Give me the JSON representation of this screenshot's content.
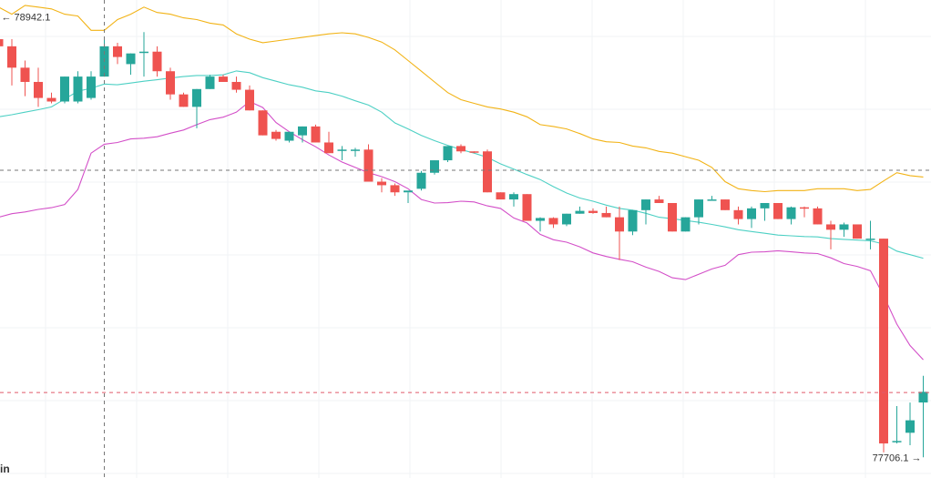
{
  "chart_data": {
    "type": "candlestick",
    "colors": {
      "up": "#26a69a",
      "down": "#ef5350",
      "bb_upper": "#f2b316",
      "bb_middle": "#4dd0c4",
      "bb_lower": "#d34fc8",
      "grid": "#f0f3f6",
      "crosshair": "#777777",
      "last_price_line": "#e05a6a",
      "background": "#ffffff"
    },
    "ylim": [
      77648,
      78990
    ],
    "high_marker": {
      "text": "← 78942.1",
      "value": 78942.1,
      "index": 0
    },
    "low_marker": {
      "text": "77706.1 →",
      "value": 77706.1,
      "index": 70
    },
    "crosshair": {
      "index": 8,
      "value": 78512
    },
    "last_price_line": 77888,
    "corner_text": "in",
    "candles": [
      [
        78880,
        78942.1,
        78650,
        78860
      ],
      [
        78860,
        78880,
        78750,
        78800
      ],
      [
        78800,
        78820,
        78720,
        78760
      ],
      [
        78760,
        78800,
        78690,
        78715
      ],
      [
        78715,
        78730,
        78700,
        78705
      ],
      [
        78705,
        78775,
        78700,
        78775
      ],
      [
        78705,
        78790,
        78700,
        78775
      ],
      [
        78715,
        78790,
        78710,
        78775
      ],
      [
        78775,
        78880,
        78775,
        78860
      ],
      [
        78860,
        78870,
        78810,
        78830
      ],
      [
        78810,
        78840,
        78780,
        78840
      ],
      [
        78845,
        78900,
        78775,
        78845
      ],
      [
        78845,
        78860,
        78775,
        78790
      ],
      [
        78790,
        78800,
        78710,
        78725
      ],
      [
        78725,
        78730,
        78690,
        78690
      ],
      [
        78690,
        78740,
        78630,
        78740
      ],
      [
        78740,
        78780,
        78740,
        78775
      ],
      [
        78775,
        78780,
        78760,
        78760
      ],
      [
        78760,
        78775,
        78730,
        78738
      ],
      [
        78738,
        78750,
        78680,
        78680
      ],
      [
        78680,
        78680,
        78610,
        78610
      ],
      [
        78620,
        78625,
        78595,
        78600
      ],
      [
        78595,
        78620,
        78590,
        78620
      ],
      [
        78610,
        78635,
        78590,
        78635
      ],
      [
        78635,
        78640,
        78590,
        78590
      ],
      [
        78590,
        78620,
        78560,
        78560
      ],
      [
        78570,
        78580,
        78540,
        78570
      ],
      [
        78570,
        78575,
        78550,
        78570
      ],
      [
        78570,
        78585,
        78480,
        78480
      ],
      [
        78480,
        78490,
        78450,
        78470
      ],
      [
        78470,
        78475,
        78440,
        78450
      ],
      [
        78450,
        78450,
        78420,
        78455
      ],
      [
        78460,
        78510,
        78455,
        78505
      ],
      [
        78505,
        78540,
        78500,
        78540
      ],
      [
        78540,
        78580,
        78535,
        78580
      ],
      [
        78580,
        78585,
        78560,
        78565
      ],
      [
        78565,
        78565,
        78560,
        78562
      ],
      [
        78565,
        78570,
        78450,
        78450
      ],
      [
        78450,
        78450,
        78440,
        78430
      ],
      [
        78430,
        78450,
        78410,
        78445
      ],
      [
        78445,
        78445,
        78370,
        78370
      ],
      [
        78370,
        78380,
        78340,
        78378
      ],
      [
        78378,
        78380,
        78350,
        78360
      ],
      [
        78360,
        78390,
        78355,
        78390
      ],
      [
        78390,
        78410,
        78390,
        78398
      ],
      [
        78398,
        78405,
        78390,
        78392
      ],
      [
        78392,
        78410,
        78380,
        78380
      ],
      [
        78380,
        78410,
        78260,
        78340
      ],
      [
        78340,
        78400,
        78330,
        78400
      ],
      [
        78400,
        78430,
        78360,
        78430
      ],
      [
        78430,
        78440,
        78420,
        78420
      ],
      [
        78420,
        78420,
        78340,
        78340
      ],
      [
        78340,
        78380,
        78340,
        78380
      ],
      [
        78380,
        78430,
        78360,
        78430
      ],
      [
        78430,
        78440,
        78430,
        78430
      ],
      [
        78430,
        78430,
        78400,
        78400
      ],
      [
        78400,
        78410,
        78360,
        78375
      ],
      [
        78375,
        78410,
        78350,
        78405
      ],
      [
        78405,
        78420,
        78370,
        78420
      ],
      [
        78420,
        78420,
        78375,
        78375
      ],
      [
        78375,
        78410,
        78360,
        78408
      ],
      [
        78408,
        78410,
        78380,
        78405
      ],
      [
        78405,
        78410,
        78360,
        78360
      ],
      [
        78360,
        78370,
        78290,
        78345
      ],
      [
        78345,
        78365,
        78325,
        78360
      ],
      [
        78360,
        78360,
        78320,
        78320
      ],
      [
        78320,
        78370,
        78290,
        78320
      ],
      [
        78320,
        78320,
        77720,
        77745
      ],
      [
        77750,
        77850,
        77745,
        77752
      ],
      [
        77775,
        77860,
        77740,
        77810
      ],
      [
        77860,
        77935,
        77706.1,
        77890
      ]
    ],
    "bb_upper": [
      78970,
      78950,
      78975,
      78970,
      78965,
      78950,
      78945,
      78905,
      78905,
      78935,
      78950,
      78970,
      78955,
      78950,
      78940,
      78935,
      78925,
      78920,
      78895,
      78880,
      78870,
      78875,
      78880,
      78885,
      78890,
      78895,
      78898,
      78895,
      78885,
      78872,
      78850,
      78820,
      78790,
      78760,
      78730,
      78710,
      78700,
      78690,
      78684,
      78675,
      78662,
      78640,
      78635,
      78628,
      78615,
      78600,
      78592,
      78590,
      78580,
      78575,
      78565,
      78560,
      78550,
      78540,
      78520,
      78480,
      78460,
      78455,
      78452,
      78455,
      78455,
      78455,
      78460,
      78460,
      78460,
      78455,
      78458,
      78482,
      78505,
      78497,
      78493
    ],
    "bb_middle": [
      78662,
      78668,
      78675,
      78682,
      78690,
      78712,
      78734,
      78742,
      78754,
      78752,
      78757,
      78762,
      78766,
      78771,
      78775,
      78778,
      78778,
      78780,
      78791,
      78786,
      78772,
      78762,
      78752,
      78745,
      78735,
      78730,
      78720,
      78707,
      78695,
      78675,
      78645,
      78628,
      78610,
      78595,
      78582,
      78570,
      78560,
      78548,
      78530,
      78515,
      78500,
      78486,
      78466,
      78448,
      78434,
      78425,
      78414,
      78405,
      78400,
      78391,
      78380,
      78376,
      78371,
      78366,
      78360,
      78353,
      78345,
      78340,
      78335,
      78330,
      78328,
      78326,
      78325,
      78320,
      78318,
      78316,
      78314,
      78305,
      78285,
      78275,
      78265
    ],
    "bb_lower": [
      78380,
      78390,
      78395,
      78402,
      78407,
      78416,
      78458,
      78560,
      78585,
      78590,
      78600,
      78602,
      78606,
      78616,
      78625,
      78640,
      78654,
      78661,
      78675,
      78705,
      78688,
      78646,
      78620,
      78598,
      78578,
      78555,
      78535,
      78520,
      78505,
      78494,
      78480,
      78460,
      78430,
      78420,
      78421,
      78425,
      78423,
      78412,
      78405,
      78378,
      78364,
      78332,
      78317,
      78310,
      78297,
      78280,
      78270,
      78262,
      78255,
      78240,
      78228,
      78210,
      78205,
      78220,
      78235,
      78245,
      78275,
      78282,
      78283,
      78286,
      78283,
      78280,
      78278,
      78266,
      78250,
      78242,
      78230,
      78160,
      78080,
      78020,
      77980
    ]
  }
}
